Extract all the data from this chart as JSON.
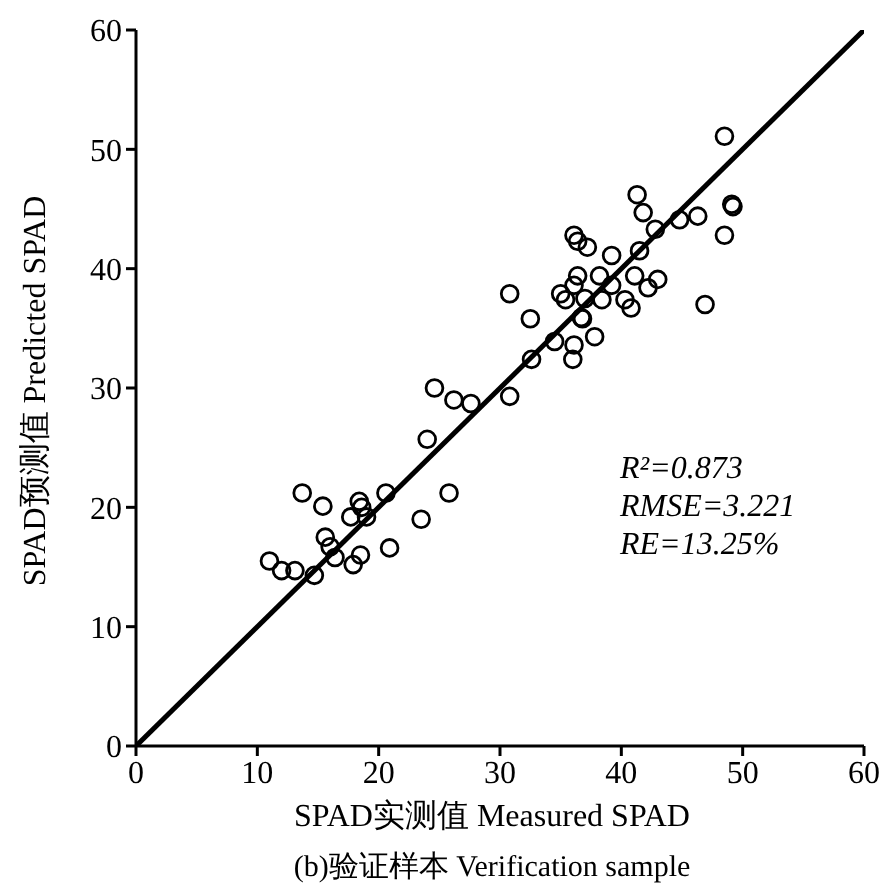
{
  "chart_data": {
    "type": "scatter",
    "title": "(b)验证样本 Verification sample",
    "xlabel": "SPAD实测值  Measured SPAD",
    "ylabel": "SPAD预测值 Predicted SPAD",
    "xlim": [
      0,
      60
    ],
    "ylim": [
      0,
      60
    ],
    "xticks": [
      0,
      10,
      20,
      30,
      40,
      50,
      60
    ],
    "yticks": [
      0,
      10,
      20,
      30,
      40,
      50,
      60
    ],
    "marker": "circle",
    "annotations": [
      "R²=0.873",
      "RMSE=3.221",
      "RE=13.25%"
    ],
    "series": [
      {
        "color": "#000000",
        "x": [
          48.5,
          41.3,
          41.8,
          46.3,
          44.8,
          49.1,
          49.2,
          42.8,
          48.5,
          36.1,
          36.4,
          37.2,
          39.2,
          41.5,
          36.4,
          38.2,
          41.1,
          43.0,
          35.0,
          35.4,
          37.0,
          38.4,
          40.3,
          40.8,
          42.2,
          39.2,
          36.1,
          36.7,
          36.8,
          46.9,
          37.8,
          34.5,
          36.1,
          36.0,
          32.6,
          32.5,
          30.8,
          30.8,
          24.6,
          26.2,
          27.6,
          24.0,
          13.7,
          15.4,
          25.8,
          20.6,
          18.4,
          18.6,
          19.0,
          17.7,
          23.5,
          15.6,
          16.0,
          16.4,
          18.5,
          17.9,
          20.9,
          11.0,
          12.0,
          13.1,
          14.7
        ],
        "values": [
          51.1,
          46.2,
          44.7,
          44.4,
          44.1,
          45.4,
          45.2,
          43.3,
          42.8,
          42.8,
          42.3,
          41.8,
          41.1,
          41.5,
          39.4,
          39.4,
          39.4,
          39.1,
          37.9,
          37.4,
          37.5,
          37.4,
          37.4,
          36.7,
          38.4,
          38.6,
          38.6,
          35.9,
          35.8,
          37.0,
          34.3,
          33.9,
          33.6,
          32.4,
          32.4,
          35.8,
          37.9,
          29.3,
          30.0,
          29.0,
          28.7,
          25.7,
          21.2,
          20.1,
          21.2,
          21.2,
          20.5,
          20.0,
          19.2,
          19.2,
          19.0,
          17.5,
          16.7,
          15.8,
          16.0,
          15.2,
          16.6,
          15.5,
          14.7,
          14.7,
          14.3
        ]
      },
      {
        "type": "line",
        "color": "#000000",
        "marker": "none",
        "line_style": "solid",
        "x": [
          0,
          60
        ],
        "values": [
          0,
          60
        ]
      }
    ]
  }
}
